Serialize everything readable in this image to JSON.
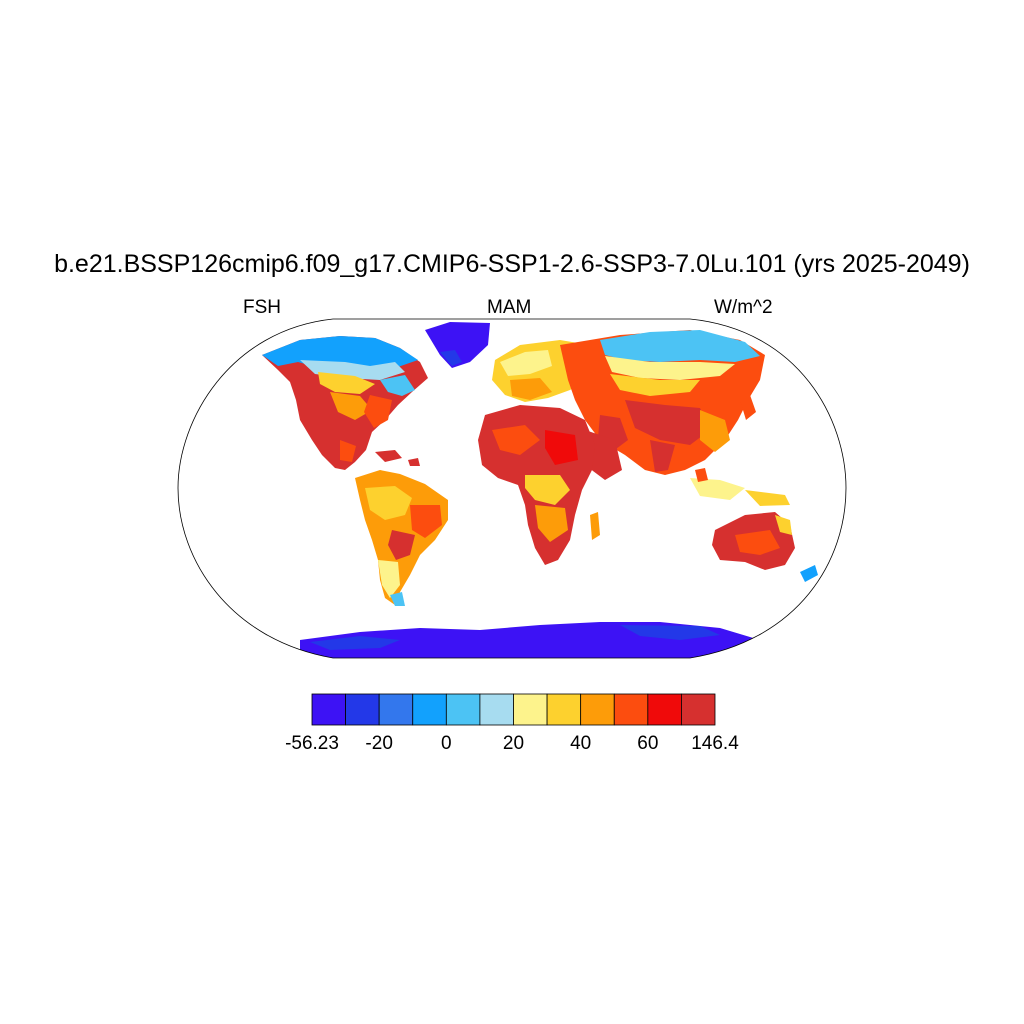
{
  "title": "b.e21.BSSP126cmip6.f09_g17.CMIP6-SSP1-2.6-SSP3-7.0Lu.101 (yrs 2025-2049)",
  "left_label": "FSH",
  "center_label": "MAM",
  "right_label": "W/m^2",
  "colorbar": {
    "colors": [
      "#3d12f5",
      "#2338e8",
      "#3377ed",
      "#12a1fd",
      "#4cc3f4",
      "#a7dcf0",
      "#fdf38c",
      "#fdd12e",
      "#fd9c09",
      "#fc4d0f",
      "#f00a0a",
      "#d6302f"
    ],
    "labels": [
      "-56.23",
      "-20",
      "0",
      "20",
      "40",
      "60",
      "146.4"
    ]
  }
}
